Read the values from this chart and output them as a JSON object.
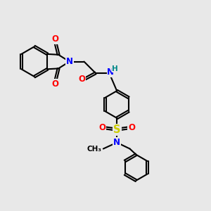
{
  "bg_color": "#e8e8e8",
  "bond_color": "#000000",
  "bond_width": 1.5,
  "atom_colors": {
    "N": "#0000ff",
    "O": "#ff0000",
    "S": "#cccc00",
    "H": "#008888",
    "C": "#000000"
  },
  "font_size": 8.5
}
